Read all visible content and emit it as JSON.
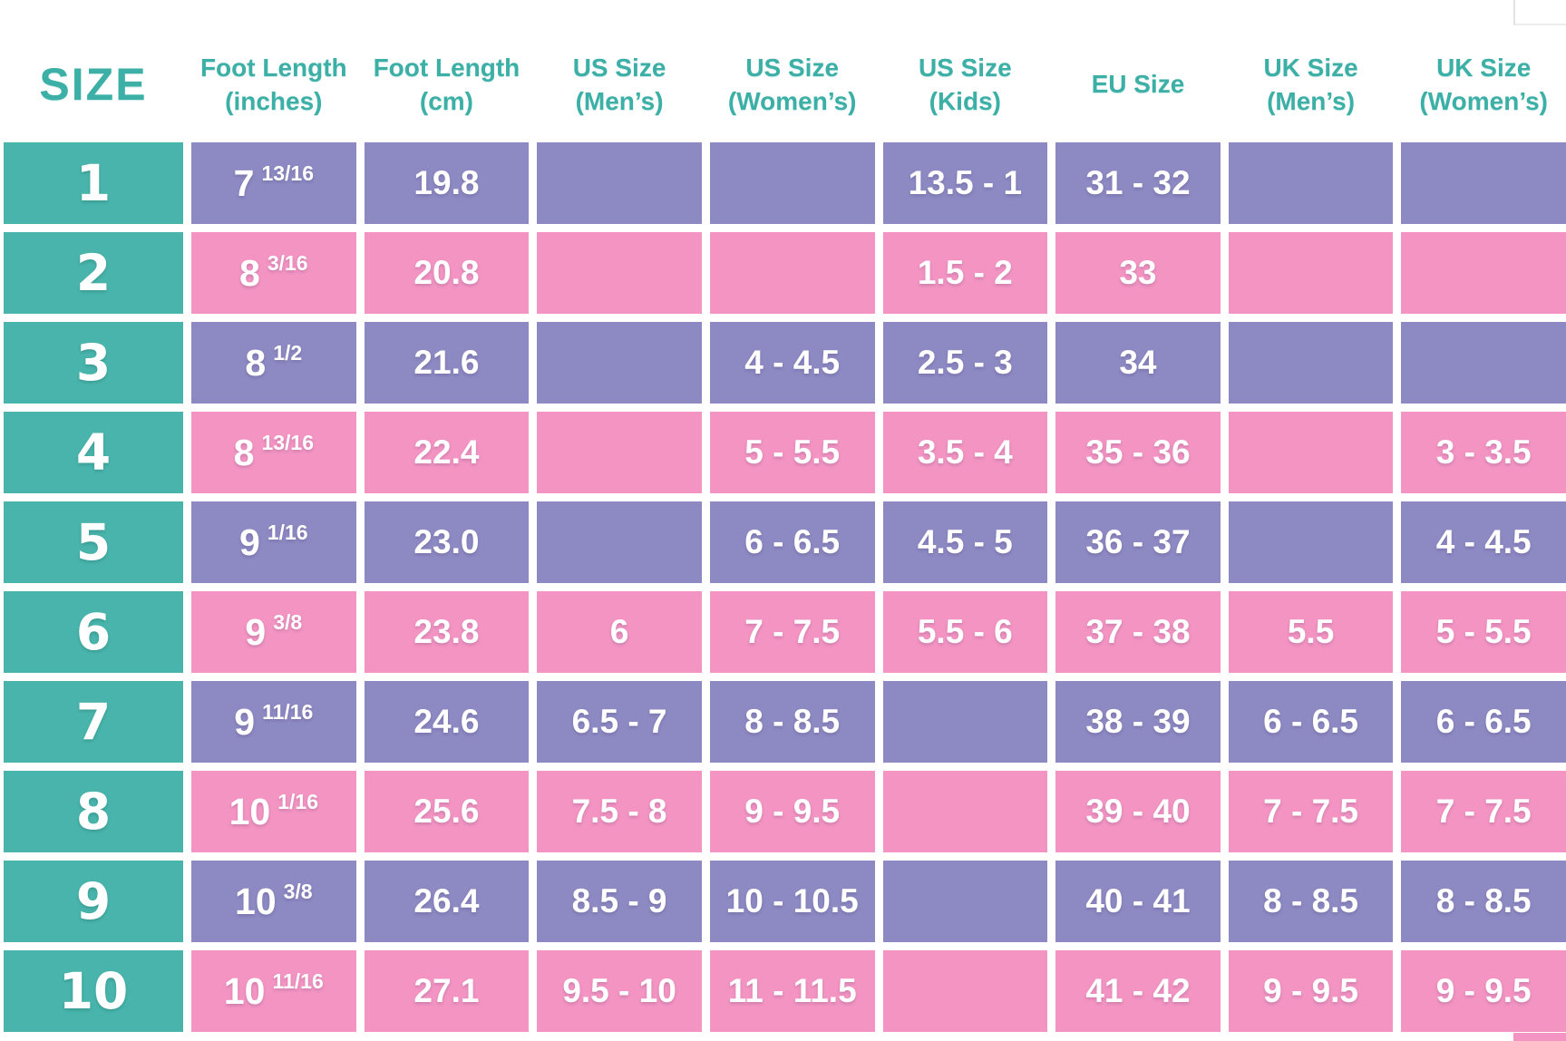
{
  "colors": {
    "teal": "#48B4AB",
    "teal_text": "#3CAFA6",
    "purple": "#8D89C3",
    "pink": "#F394C3",
    "cell_text": "#FFFFFF",
    "background": "#FFFFFF"
  },
  "chart_data": {
    "type": "table",
    "row_shading": [
      "purple",
      "pink"
    ],
    "columns": [
      {
        "id": "size",
        "label": "SIZE",
        "sub": ""
      },
      {
        "id": "foot-length-inches",
        "label": "Foot Length",
        "sub": "(inches)"
      },
      {
        "id": "foot-length-cm",
        "label": "Foot Length",
        "sub": "(cm)"
      },
      {
        "id": "us-size-mens",
        "label": "US Size",
        "sub": "(Men’s)"
      },
      {
        "id": "us-size-womens",
        "label": "US Size",
        "sub": "(Women’s)"
      },
      {
        "id": "us-size-kids",
        "label": "US Size",
        "sub": "(Kids)"
      },
      {
        "id": "eu-size",
        "label": "EU Size",
        "sub": ""
      },
      {
        "id": "uk-size-mens",
        "label": "UK Size",
        "sub": "(Men’s)"
      },
      {
        "id": "uk-size-womens",
        "label": "UK Size",
        "sub": "(Women’s)"
      }
    ],
    "rows": [
      {
        "size": "1",
        "inches_whole": "7",
        "inches_frac": "13/16",
        "cm": "19.8",
        "us_mens": "",
        "us_womens": "",
        "us_kids": "13.5 - 1",
        "eu": "31 - 32",
        "uk_mens": "",
        "uk_womens": ""
      },
      {
        "size": "2",
        "inches_whole": "8",
        "inches_frac": "3/16",
        "cm": "20.8",
        "us_mens": "",
        "us_womens": "",
        "us_kids": "1.5 - 2",
        "eu": "33",
        "uk_mens": "",
        "uk_womens": ""
      },
      {
        "size": "3",
        "inches_whole": "8",
        "inches_frac": "1/2",
        "cm": "21.6",
        "us_mens": "",
        "us_womens": "4 - 4.5",
        "us_kids": "2.5 - 3",
        "eu": "34",
        "uk_mens": "",
        "uk_womens": ""
      },
      {
        "size": "4",
        "inches_whole": "8",
        "inches_frac": "13/16",
        "cm": "22.4",
        "us_mens": "",
        "us_womens": "5 - 5.5",
        "us_kids": "3.5 - 4",
        "eu": "35 - 36",
        "uk_mens": "",
        "uk_womens": "3 - 3.5"
      },
      {
        "size": "5",
        "inches_whole": "9",
        "inches_frac": "1/16",
        "cm": "23.0",
        "us_mens": "",
        "us_womens": "6 - 6.5",
        "us_kids": "4.5 - 5",
        "eu": "36 - 37",
        "uk_mens": "",
        "uk_womens": "4 - 4.5"
      },
      {
        "size": "6",
        "inches_whole": "9",
        "inches_frac": "3/8",
        "cm": "23.8",
        "us_mens": "6",
        "us_womens": "7 - 7.5",
        "us_kids": "5.5 - 6",
        "eu": "37 - 38",
        "uk_mens": "5.5",
        "uk_womens": "5 - 5.5"
      },
      {
        "size": "7",
        "inches_whole": "9",
        "inches_frac": "11/16",
        "cm": "24.6",
        "us_mens": "6.5 - 7",
        "us_womens": "8 - 8.5",
        "us_kids": "",
        "eu": "38 - 39",
        "uk_mens": "6 - 6.5",
        "uk_womens": "6 - 6.5"
      },
      {
        "size": "8",
        "inches_whole": "10",
        "inches_frac": "1/16",
        "cm": "25.6",
        "us_mens": "7.5 - 8",
        "us_womens": "9 - 9.5",
        "us_kids": "",
        "eu": "39 - 40",
        "uk_mens": "7 - 7.5",
        "uk_womens": "7 - 7.5"
      },
      {
        "size": "9",
        "inches_whole": "10",
        "inches_frac": "3/8",
        "cm": "26.4",
        "us_mens": "8.5 - 9",
        "us_womens": "10 - 10.5",
        "us_kids": "",
        "eu": "40 - 41",
        "uk_mens": "8 - 8.5",
        "uk_womens": "8 - 8.5"
      },
      {
        "size": "10",
        "inches_whole": "10",
        "inches_frac": "11/16",
        "cm": "27.1",
        "us_mens": "9.5 - 10",
        "us_womens": "11 - 11.5",
        "us_kids": "",
        "eu": "41 - 42",
        "uk_mens": "9 - 9.5",
        "uk_womens": "9 - 9.5"
      }
    ]
  }
}
